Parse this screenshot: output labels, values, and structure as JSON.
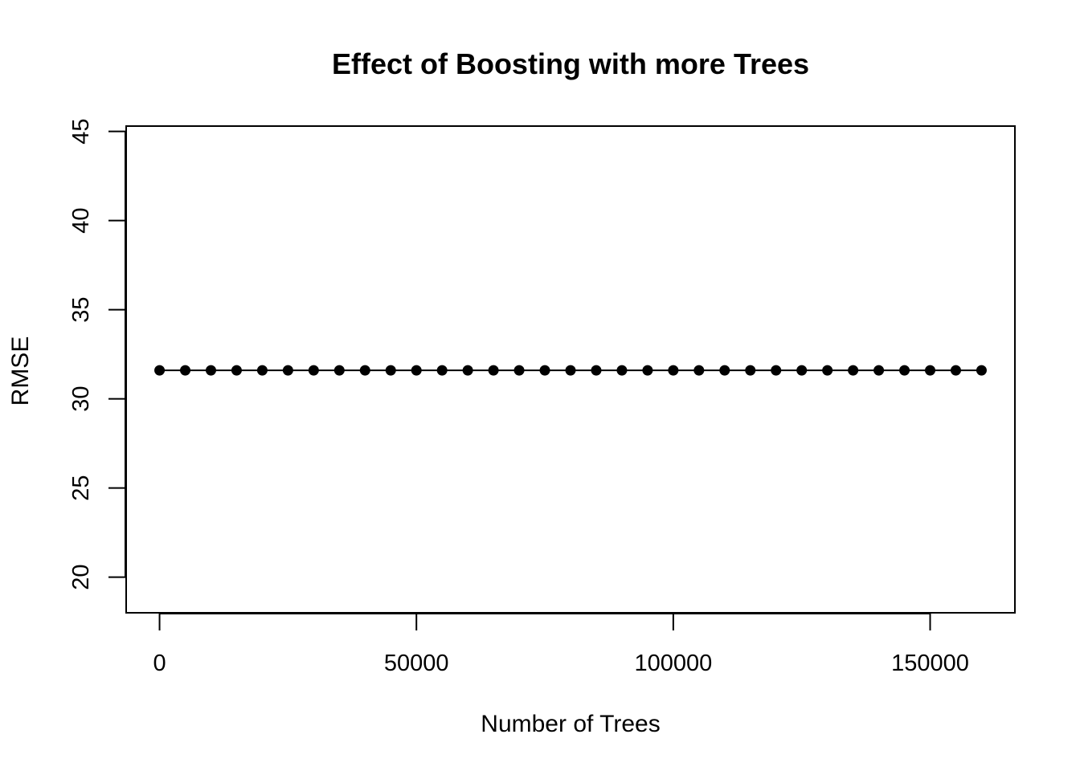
{
  "chart_data": {
    "type": "line",
    "title": "Effect of Boosting with more Trees",
    "xlabel": "Number of Trees",
    "ylabel": "RMSE",
    "xlim": [
      -6500,
      166500
    ],
    "ylim": [
      18,
      45.3
    ],
    "x_ticks": [
      0,
      50000,
      100000,
      150000
    ],
    "x_tick_labels": [
      "0",
      "50000",
      "100000",
      "150000"
    ],
    "y_ticks": [
      20,
      25,
      30,
      35,
      40,
      45
    ],
    "y_tick_labels": [
      "20",
      "25",
      "30",
      "35",
      "40",
      "45"
    ],
    "grid": false,
    "legend": "none",
    "series": [
      {
        "marker": "filled-circle",
        "color": "#000000",
        "x": [
          0,
          5000,
          10000,
          15000,
          20000,
          25000,
          30000,
          35000,
          40000,
          45000,
          50000,
          55000,
          60000,
          65000,
          70000,
          75000,
          80000,
          85000,
          90000,
          95000,
          100000,
          105000,
          110000,
          115000,
          120000,
          125000,
          130000,
          135000,
          140000,
          145000,
          150000,
          155000,
          160000
        ],
        "values": [
          31.6,
          31.6,
          31.6,
          31.6,
          31.6,
          31.6,
          31.6,
          31.6,
          31.6,
          31.6,
          31.6,
          31.6,
          31.6,
          31.6,
          31.6,
          31.6,
          31.6,
          31.6,
          31.6,
          31.6,
          31.6,
          31.6,
          31.6,
          31.6,
          31.6,
          31.6,
          31.6,
          31.6,
          31.6,
          31.6,
          31.6,
          31.6,
          31.6
        ]
      }
    ]
  }
}
